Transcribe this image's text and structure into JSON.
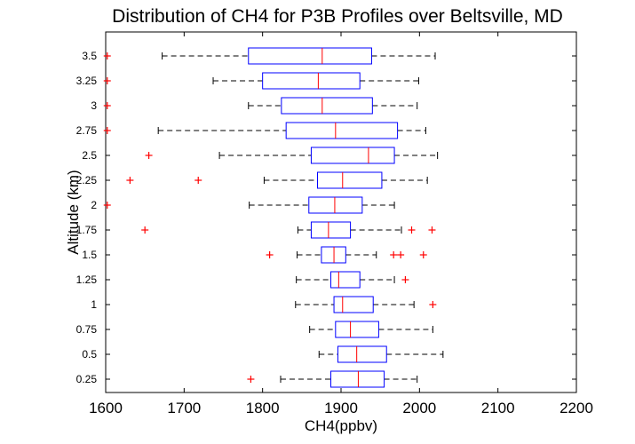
{
  "chart_data": {
    "type": "boxplot",
    "title": "Distribution of CH4 for P3B Profiles over Beltsville, MD",
    "xlabel": "CH4(ppbv)",
    "ylabel": "Altitude (km)",
    "xlim": [
      1600,
      2200
    ],
    "xticks": [
      "1600",
      "1700",
      "1800",
      "1900",
      "2000",
      "2100",
      "2200"
    ],
    "orientation": "horizontal",
    "grid": false,
    "colors": {
      "box": "#0000ff",
      "median": "#ff0000",
      "whisker": "#000000",
      "outlier": "#ff0000"
    },
    "boxes": [
      {
        "label": "0.25",
        "whisker_low": 1823,
        "q1": 1887,
        "median": 1922,
        "q3": 1955,
        "whisker_high": 1997,
        "outliers": [
          1785
        ]
      },
      {
        "label": "0.5",
        "whisker_low": 1872,
        "q1": 1896,
        "median": 1920,
        "q3": 1958,
        "whisker_high": 2030,
        "outliers": []
      },
      {
        "label": "0.75",
        "whisker_low": 1860,
        "q1": 1893,
        "median": 1912,
        "q3": 1948,
        "whisker_high": 2017,
        "outliers": []
      },
      {
        "label": "1",
        "whisker_low": 1842,
        "q1": 1891,
        "median": 1902,
        "q3": 1941,
        "whisker_high": 1993,
        "outliers": [
          2017
        ]
      },
      {
        "label": "1.25",
        "whisker_low": 1843,
        "q1": 1887,
        "median": 1897,
        "q3": 1924,
        "whisker_high": 1968,
        "outliers": [
          1982
        ]
      },
      {
        "label": "1.5",
        "whisker_low": 1844,
        "q1": 1875,
        "median": 1891,
        "q3": 1906,
        "whisker_high": 1945,
        "outliers": [
          1809,
          1967,
          1976,
          2005
        ]
      },
      {
        "label": "1.75",
        "whisker_low": 1845,
        "q1": 1862,
        "median": 1884,
        "q3": 1912,
        "whisker_high": 1977,
        "outliers": [
          1650,
          1990,
          2016
        ]
      },
      {
        "label": "2",
        "whisker_low": 1783,
        "q1": 1859,
        "median": 1892,
        "q3": 1927,
        "whisker_high": 1968,
        "outliers": [
          1602
        ]
      },
      {
        "label": "2.25",
        "whisker_low": 1802,
        "q1": 1870,
        "median": 1902,
        "q3": 1952,
        "whisker_high": 2010,
        "outliers": [
          1631,
          1718
        ]
      },
      {
        "label": "2.5",
        "whisker_low": 1745,
        "q1": 1862,
        "median": 1935,
        "q3": 1968,
        "whisker_high": 2023,
        "outliers": [
          1655
        ]
      },
      {
        "label": "2.75",
        "whisker_low": 1667,
        "q1": 1830,
        "median": 1893,
        "q3": 1972,
        "whisker_high": 2008,
        "outliers": [
          1602
        ]
      },
      {
        "label": "3",
        "whisker_low": 1782,
        "q1": 1824,
        "median": 1876,
        "q3": 1940,
        "whisker_high": 1997,
        "outliers": [
          1602
        ]
      },
      {
        "label": "3.25",
        "whisker_low": 1737,
        "q1": 1800,
        "median": 1871,
        "q3": 1924,
        "whisker_high": 1999,
        "outliers": [
          1602
        ]
      },
      {
        "label": "3.5",
        "whisker_low": 1672,
        "q1": 1782,
        "median": 1876,
        "q3": 1939,
        "whisker_high": 2020,
        "outliers": [
          1602
        ]
      }
    ]
  }
}
